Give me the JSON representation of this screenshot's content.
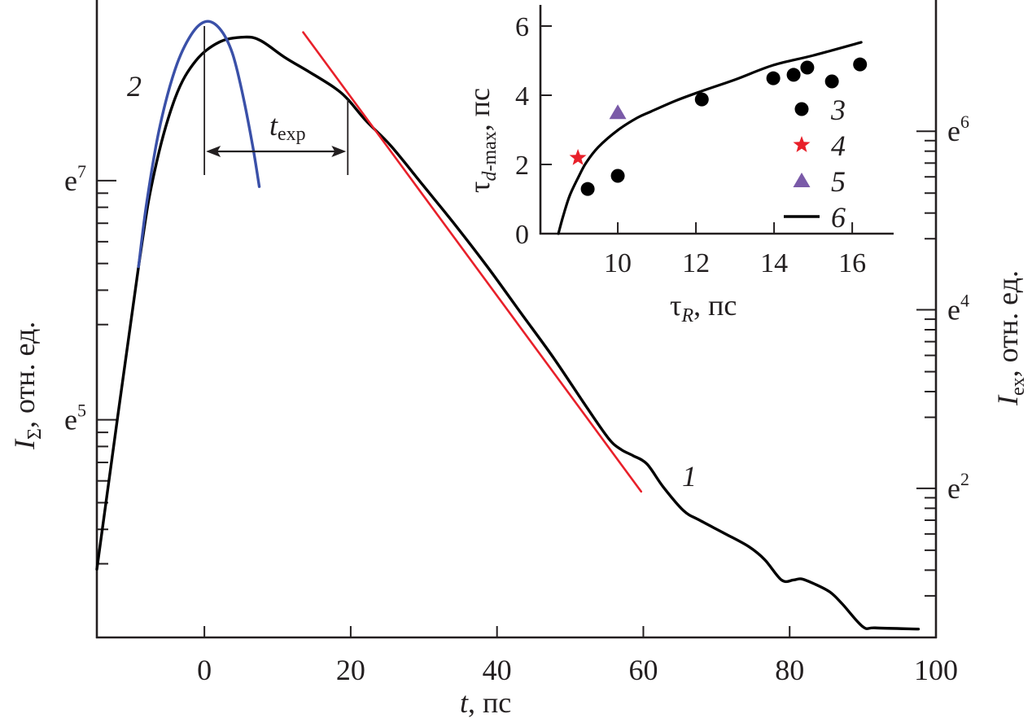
{
  "chart_data": [
    {
      "id": "main",
      "type": "line",
      "title": "",
      "xlabel": {
        "main": "t",
        "unit": ", пс"
      },
      "ylabel_left": {
        "main": "I",
        "sub": "Σ",
        "unit": ", отн. ед."
      },
      "ylabel_right": {
        "main": "I",
        "sub": "ex",
        "unit": ", отн. ед."
      },
      "xlim": [
        -14.7,
        100
      ],
      "x_ticks": [
        0,
        20,
        40,
        60,
        80,
        100
      ],
      "x_tick_labels": [
        "0",
        "20",
        "40",
        "60",
        "80",
        "100"
      ],
      "y_scale": "log (natural)",
      "ylim_left_ln": [
        3.18,
        8.51
      ],
      "y_ticks_left": [
        {
          "ln": 7,
          "base": "e",
          "exp": "7"
        },
        {
          "ln": 5,
          "base": "e",
          "exp": "5"
        }
      ],
      "ylim_right_ln": [
        0.33,
        7.47
      ],
      "y_ticks_right": [
        {
          "ln": 6,
          "base": "e",
          "exp": "6"
        },
        {
          "ln": 4,
          "base": "e",
          "exp": "4"
        },
        {
          "ln": 2,
          "base": "e",
          "exp": "2"
        }
      ],
      "grid": false,
      "series": [
        {
          "name": "1",
          "color": "#000000",
          "axis": "left",
          "points_ln": [
            [
              -14.7,
              3.75
            ],
            [
              -9.0,
              6.28
            ],
            [
              -6.8,
              7.08
            ],
            [
              -4.0,
              7.69
            ],
            [
              -1.2,
              8.0
            ],
            [
              2.1,
              8.16
            ],
            [
              5.5,
              8.2
            ],
            [
              7.7,
              8.17
            ],
            [
              11.0,
              8.03
            ],
            [
              14.3,
              7.91
            ],
            [
              17.7,
              7.78
            ],
            [
              19.6,
              7.68
            ],
            [
              22.1,
              7.5
            ],
            [
              25.5,
              7.29
            ],
            [
              29.9,
              6.96
            ],
            [
              34.4,
              6.62
            ],
            [
              38.8,
              6.27
            ],
            [
              43.3,
              5.89
            ],
            [
              47.7,
              5.52
            ],
            [
              52.2,
              5.11
            ],
            [
              55.3,
              4.84
            ],
            [
              57.0,
              4.75
            ],
            [
              58.6,
              4.7
            ],
            [
              60.5,
              4.63
            ],
            [
              62.7,
              4.44
            ],
            [
              65.5,
              4.24
            ],
            [
              67.7,
              4.16
            ],
            [
              71.1,
              4.05
            ],
            [
              74.4,
              3.94
            ],
            [
              76.6,
              3.83
            ],
            [
              78.9,
              3.66
            ],
            [
              80.5,
              3.66
            ],
            [
              81.6,
              3.67
            ],
            [
              83.3,
              3.63
            ],
            [
              85.5,
              3.56
            ],
            [
              87.2,
              3.46
            ],
            [
              90.0,
              3.27
            ],
            [
              91.7,
              3.26
            ],
            [
              97.6,
              3.25
            ]
          ]
        },
        {
          "name": "2",
          "color": "#3a50a8",
          "axis": "left",
          "points_ln": [
            [
              -9.0,
              6.28
            ],
            [
              -7.9,
              6.81
            ],
            [
              -6.2,
              7.42
            ],
            [
              -4.0,
              7.93
            ],
            [
              -1.8,
              8.22
            ],
            [
              0.2,
              8.33
            ],
            [
              2.1,
              8.27
            ],
            [
              3.8,
              8.07
            ],
            [
              5.2,
              7.73
            ],
            [
              6.6,
              7.29
            ],
            [
              7.5,
              6.95
            ]
          ]
        },
        {
          "name": "exp-fit",
          "color": "#e8202a",
          "axis": "left",
          "points_ln": [
            [
              13.5,
              8.24
            ],
            [
              59.7,
              4.4
            ]
          ]
        }
      ],
      "annotations": {
        "t_exp": {
          "main": "t",
          "sub": "exp",
          "x_start": 0,
          "x_end": 19.6
        },
        "curve_labels": [
          {
            "text": "1",
            "x": 65.5,
            "ln": 4.8
          },
          {
            "text": "2",
            "x": -9.5,
            "ln": 7.8
          }
        ]
      }
    },
    {
      "id": "inset",
      "type": "scatter",
      "xlabel": {
        "main": "τ",
        "sub": "R",
        "unit": ", пс"
      },
      "ylabel": {
        "main": "τ",
        "sub": "d",
        "sub_rest": "-max",
        "unit": ", пс"
      },
      "xlim": [
        8.02,
        17.06
      ],
      "ylim": [
        0,
        6.6
      ],
      "x_ticks": [
        10,
        12,
        14,
        16
      ],
      "x_tick_labels": [
        "10",
        "12",
        "14",
        "16"
      ],
      "y_ticks": [
        0,
        2,
        4,
        6
      ],
      "y_tick_labels": [
        "0",
        "2",
        "4",
        "6"
      ],
      "grid": false,
      "series": [
        {
          "name": "3",
          "marker": "circle",
          "color": "#000000",
          "points": [
            [
              9.23,
              1.29
            ],
            [
              10.0,
              1.67
            ],
            [
              12.15,
              3.88
            ],
            [
              13.98,
              4.49
            ],
            [
              14.5,
              4.59
            ],
            [
              14.85,
              4.8
            ],
            [
              15.48,
              4.4
            ],
            [
              16.2,
              4.89
            ]
          ]
        },
        {
          "name": "4",
          "marker": "star",
          "color": "#e8202a",
          "points": [
            [
              8.98,
              2.19
            ]
          ]
        },
        {
          "name": "5",
          "marker": "triangle",
          "color": "#7a5aa8",
          "points": [
            [
              10.0,
              3.5
            ]
          ]
        },
        {
          "name": "6",
          "marker": "line",
          "color": "#000000",
          "points": [
            [
              8.48,
              0
            ],
            [
              8.6,
              0.5
            ],
            [
              8.77,
              1.1
            ],
            [
              9.0,
              1.65
            ],
            [
              9.19,
              2.05
            ],
            [
              9.5,
              2.5
            ],
            [
              10.0,
              2.99
            ],
            [
              10.5,
              3.35
            ],
            [
              10.85,
              3.53
            ],
            [
              11.5,
              3.85
            ],
            [
              12.15,
              4.12
            ],
            [
              13.0,
              4.45
            ],
            [
              13.98,
              4.87
            ],
            [
              15.0,
              5.15
            ],
            [
              16.23,
              5.53
            ]
          ]
        }
      ],
      "legend": {
        "placement": "bottom-right",
        "entries": [
          {
            "label": "3",
            "marker": "circle",
            "color": "#000000"
          },
          {
            "label": "4",
            "marker": "star",
            "color": "#e8202a"
          },
          {
            "label": "5",
            "marker": "triangle",
            "color": "#7a5aa8"
          },
          {
            "label": "6",
            "marker": "line",
            "color": "#000000"
          }
        ]
      }
    }
  ]
}
